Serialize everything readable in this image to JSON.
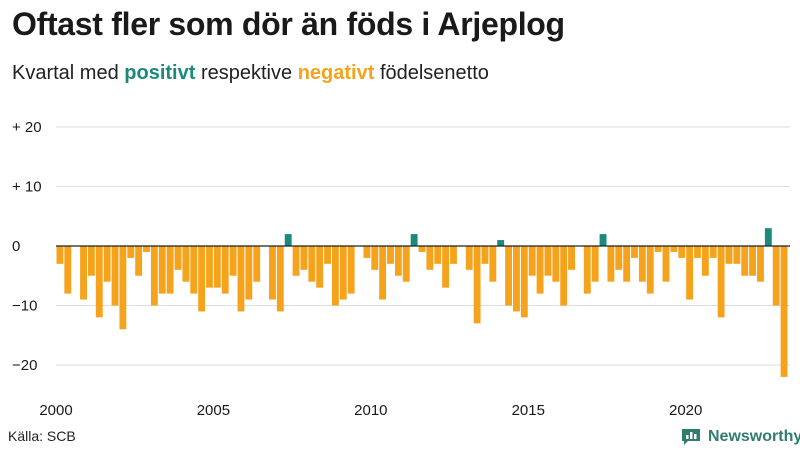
{
  "header": {
    "title": "Oftast fler som dör än föds i Arjeplog",
    "subtitle_pre": "Kvartal med",
    "subtitle_pos": "positivt",
    "subtitle_mid": "respektive",
    "subtitle_neg": "negativt",
    "subtitle_post": "födelsenetto"
  },
  "footer": {
    "source": "Källa: SCB",
    "brand": "Newsworthy"
  },
  "colors": {
    "positive": "#1a8a7d",
    "negative": "#f5a31c",
    "grid": "#dddddd",
    "zero": "#222222",
    "text": "#1a1a1a"
  },
  "chart_data": {
    "type": "bar",
    "title": "Oftast fler som dör än föds i Arjeplog",
    "subtitle": "Kvartal med positivt respektive negativt födelsenetto",
    "xlabel": "",
    "ylabel": "",
    "ylim": [
      -22,
      22
    ],
    "grid": true,
    "y_ticks": [
      {
        "value": 20,
        "label": "+ 20"
      },
      {
        "value": 10,
        "label": "+ 10"
      },
      {
        "value": 0,
        "label": "0"
      },
      {
        "value": -10,
        "label": "−10"
      },
      {
        "value": -20,
        "label": "−20"
      }
    ],
    "x_ticks": [
      {
        "value": 2000,
        "label": "2000"
      },
      {
        "value": 2005,
        "label": "2005"
      },
      {
        "value": 2010,
        "label": "2010"
      },
      {
        "value": 2015,
        "label": "2015"
      },
      {
        "value": 2020,
        "label": "2020"
      }
    ],
    "x_start": 2000,
    "period": "quarter",
    "values": [
      -3,
      -8,
      0,
      -9,
      -5,
      -12,
      -6,
      -10,
      -14,
      -2,
      -5,
      -1,
      -10,
      -8,
      -8,
      -4,
      -6,
      -8,
      -11,
      -7,
      -7,
      -8,
      -5,
      -11,
      -9,
      -6,
      0,
      -9,
      -11,
      2,
      -5,
      -4,
      -6,
      -7,
      -3,
      -10,
      -9,
      -8,
      0,
      -2,
      -4,
      -9,
      -3,
      -5,
      -6,
      2,
      -1,
      -4,
      -3,
      -7,
      -3,
      0,
      -4,
      -13,
      -3,
      -6,
      1,
      -10,
      -11,
      -12,
      -5,
      -8,
      -5,
      -6,
      -10,
      -4,
      0,
      -8,
      -6,
      2,
      -6,
      -4,
      -6,
      -2,
      -6,
      -8,
      -1,
      -6,
      -1,
      -2,
      -9,
      -2,
      -5,
      -2,
      -12,
      -3,
      -3,
      -5,
      -5,
      -6,
      3,
      -10,
      -22
    ]
  }
}
